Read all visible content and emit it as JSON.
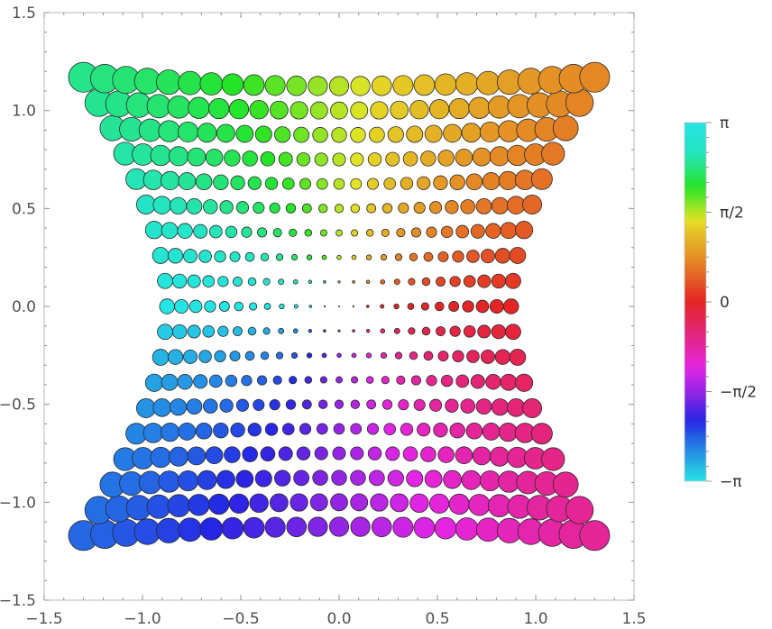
{
  "chart_data": {
    "type": "scatter",
    "title": "",
    "xlabel": "",
    "ylabel": "",
    "xlim": [
      -1.5,
      1.5
    ],
    "ylim": [
      -1.5,
      1.5
    ],
    "grid": false,
    "x_ticks": [
      {
        "value": -1.5,
        "label": "−1.5"
      },
      {
        "value": -1.0,
        "label": "−1.0"
      },
      {
        "value": -0.5,
        "label": "−0.5"
      },
      {
        "value": 0.0,
        "label": "0.0"
      },
      {
        "value": 0.5,
        "label": "0.5"
      },
      {
        "value": 1.0,
        "label": "1.0"
      },
      {
        "value": 1.5,
        "label": "1.5"
      }
    ],
    "y_ticks": [
      {
        "value": 1.5,
        "label": "1.5"
      },
      {
        "value": 1.0,
        "label": "1.0"
      },
      {
        "value": 0.5,
        "label": "0.5"
      },
      {
        "value": 0.0,
        "label": "0.0"
      },
      {
        "value": -0.5,
        "label": "−0.5"
      },
      {
        "value": -1.0,
        "label": "−1.0"
      },
      {
        "value": -1.5,
        "label": "−1.5"
      }
    ],
    "color_legend": {
      "placement": "right",
      "range": [
        -3.14159,
        3.14159
      ],
      "labels": [
        {
          "value": 3.14159,
          "text": "π"
        },
        {
          "value": 1.5708,
          "text": "π/2"
        },
        {
          "value": 0,
          "text": "0"
        },
        {
          "value": -1.5708,
          "text": "−π/2"
        },
        {
          "value": -3.14159,
          "text": "−π"
        }
      ],
      "colors": [
        "#33c1c1",
        "#2fc08a",
        "#3cc43c",
        "#cccc22",
        "#f0a020",
        "#ee3c3c",
        "#e0209a",
        "#b040e0",
        "#6a6af0",
        "#33c1c1"
      ]
    },
    "point_grid": {
      "description": "points on a grid with spacing 0.125, colored by arg(z) and sized by |z|, within region bounded by hyperbolic edges",
      "step": 0.125,
      "rows_y_max": 1.125,
      "rows_y_min": -1.125,
      "edge_x_at_y0": 0.875,
      "edge_x_at_ymax": 1.3
    }
  }
}
